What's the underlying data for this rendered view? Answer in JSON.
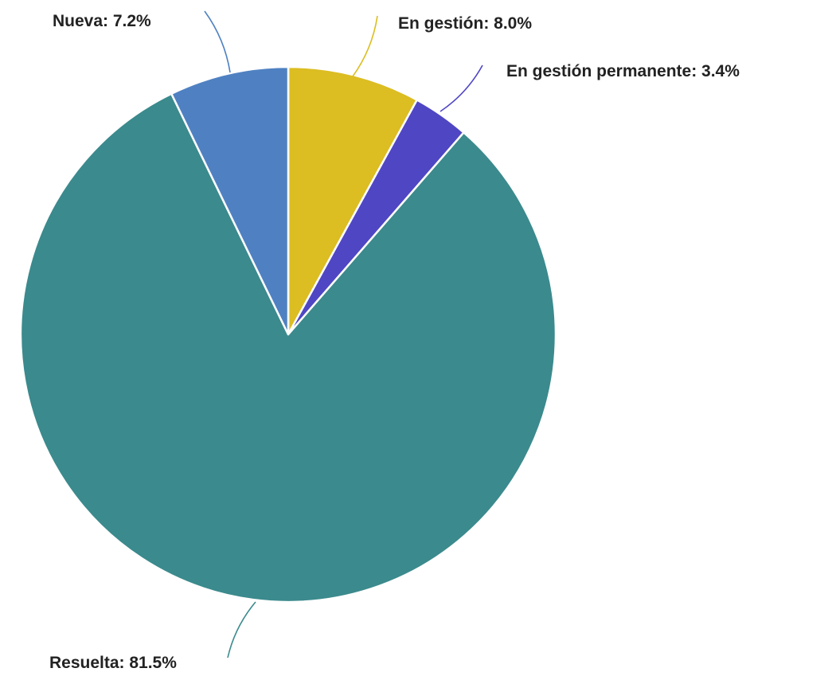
{
  "chart_data": {
    "type": "pie",
    "title": "",
    "slices": [
      {
        "label": "En gestión",
        "value": 8.0,
        "display": "8.0%",
        "color": "#dcbd22"
      },
      {
        "label": "En gestión permanente",
        "value": 3.4,
        "display": "3.4%",
        "color": "#4f46c4"
      },
      {
        "label": "Resuelta",
        "value": 81.5,
        "display": "81.5%",
        "color": "#3b8a8d"
      },
      {
        "label": "Nueva",
        "value": 7.2,
        "display": "7.2%",
        "color": "#4f81c2"
      }
    ],
    "start_angle": "12 o'clock",
    "direction": "clockwise",
    "legend": "none",
    "label_style": "outside with leader lines"
  }
}
